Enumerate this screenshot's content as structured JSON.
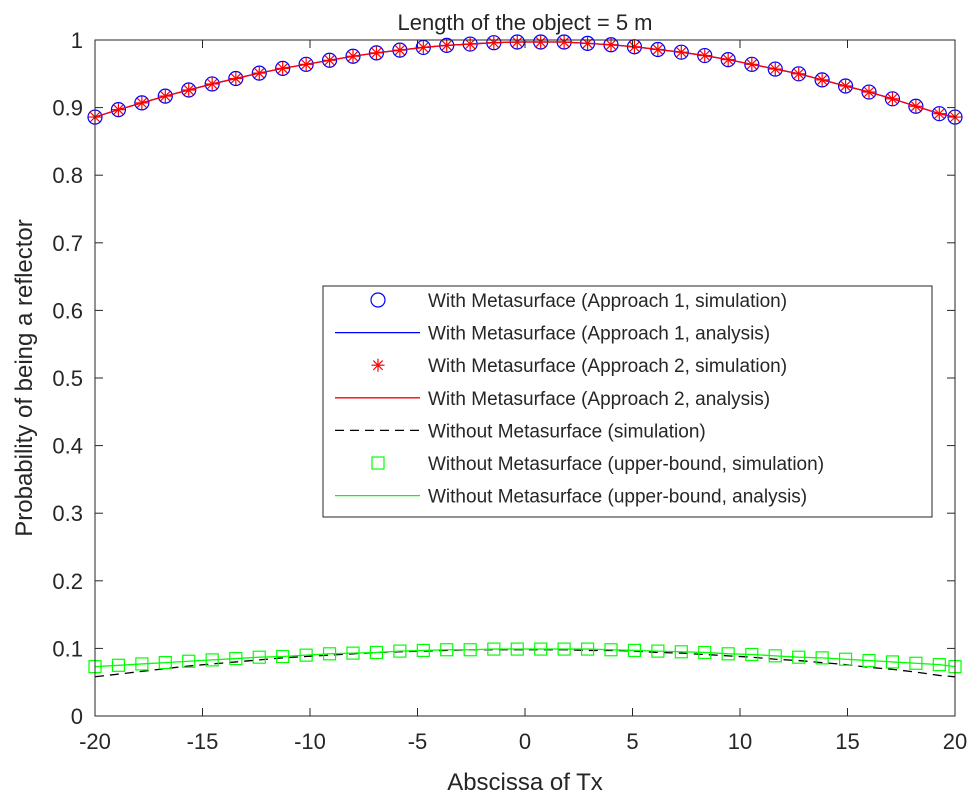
{
  "chart_data": {
    "type": "line",
    "title": "Length of the object = 5 m",
    "xlabel": "Abscissa of Tx",
    "ylabel": "Probability of being a reflector",
    "xlim": [
      -20,
      20
    ],
    "ylim": [
      0,
      1
    ],
    "xticks": [
      -20,
      -15,
      -10,
      -5,
      0,
      5,
      10,
      15,
      20
    ],
    "yticks": [
      0,
      0.1,
      0.2,
      0.3,
      0.4,
      0.5,
      0.6,
      0.7,
      0.8,
      0.9,
      1
    ],
    "xtick_labels": [
      "-20",
      "-15",
      "-10",
      "-5",
      "0",
      "5",
      "10",
      "15",
      "20"
    ],
    "ytick_labels": [
      "0",
      "0.1",
      "0.2",
      "0.3",
      "0.4",
      "0.5",
      "0.6",
      "0.7",
      "0.8",
      "0.9",
      "1"
    ],
    "grid": false,
    "legend_position": "center-right",
    "x": [
      -20,
      -18.91,
      -17.82,
      -16.73,
      -15.64,
      -14.55,
      -13.45,
      -12.36,
      -11.27,
      -10.18,
      -9.09,
      -8.0,
      -6.91,
      -5.82,
      -4.73,
      -3.64,
      -2.55,
      -1.45,
      -0.36,
      0.73,
      1.82,
      2.91,
      4.0,
      5.09,
      6.18,
      7.27,
      8.36,
      9.45,
      10.55,
      11.64,
      12.73,
      13.82,
      14.91,
      16.0,
      17.09,
      18.18,
      19.27,
      20
    ],
    "series": [
      {
        "name": "With Metasurface (Approach 1, simulation)",
        "style": "circle-markers",
        "color": "#0000ff",
        "values": [
          0.886,
          0.897,
          0.907,
          0.917,
          0.926,
          0.935,
          0.943,
          0.951,
          0.958,
          0.964,
          0.97,
          0.976,
          0.981,
          0.985,
          0.989,
          0.992,
          0.994,
          0.996,
          0.997,
          0.997,
          0.997,
          0.995,
          0.993,
          0.99,
          0.986,
          0.982,
          0.977,
          0.971,
          0.964,
          0.957,
          0.95,
          0.941,
          0.932,
          0.923,
          0.913,
          0.902,
          0.891,
          0.886
        ]
      },
      {
        "name": "With Metasurface (Approach 1, analysis)",
        "style": "solid-line",
        "color": "#0000ff",
        "values": [
          0.886,
          0.897,
          0.907,
          0.917,
          0.926,
          0.935,
          0.943,
          0.951,
          0.958,
          0.964,
          0.97,
          0.976,
          0.981,
          0.985,
          0.989,
          0.992,
          0.994,
          0.996,
          0.997,
          0.997,
          0.997,
          0.995,
          0.993,
          0.99,
          0.986,
          0.982,
          0.977,
          0.971,
          0.964,
          0.957,
          0.95,
          0.941,
          0.932,
          0.923,
          0.913,
          0.902,
          0.891,
          0.886
        ]
      },
      {
        "name": "With Metasurface (Approach 2, simulation)",
        "style": "star-markers",
        "color": "#ff0000",
        "values": [
          0.886,
          0.897,
          0.907,
          0.917,
          0.926,
          0.935,
          0.943,
          0.951,
          0.958,
          0.964,
          0.97,
          0.976,
          0.981,
          0.985,
          0.989,
          0.992,
          0.994,
          0.996,
          0.997,
          0.997,
          0.997,
          0.995,
          0.993,
          0.99,
          0.986,
          0.982,
          0.977,
          0.971,
          0.964,
          0.957,
          0.95,
          0.941,
          0.932,
          0.923,
          0.913,
          0.902,
          0.891,
          0.886
        ]
      },
      {
        "name": "With Metasurface (Approach 2, analysis)",
        "style": "solid-line",
        "color": "#ff0000",
        "values": [
          0.886,
          0.897,
          0.907,
          0.917,
          0.926,
          0.935,
          0.943,
          0.951,
          0.958,
          0.964,
          0.97,
          0.976,
          0.981,
          0.985,
          0.989,
          0.992,
          0.994,
          0.996,
          0.997,
          0.997,
          0.997,
          0.995,
          0.993,
          0.99,
          0.986,
          0.982,
          0.977,
          0.971,
          0.964,
          0.957,
          0.95,
          0.941,
          0.932,
          0.923,
          0.913,
          0.902,
          0.891,
          0.886
        ]
      },
      {
        "name": "Without Metasurface (simulation)",
        "style": "dashed-line",
        "color": "#000000",
        "values": [
          0.058,
          0.062,
          0.066,
          0.07,
          0.074,
          0.077,
          0.08,
          0.083,
          0.086,
          0.088,
          0.09,
          0.092,
          0.094,
          0.095,
          0.096,
          0.097,
          0.098,
          0.098,
          0.098,
          0.098,
          0.098,
          0.097,
          0.097,
          0.096,
          0.094,
          0.093,
          0.091,
          0.089,
          0.087,
          0.084,
          0.082,
          0.079,
          0.076,
          0.072,
          0.069,
          0.065,
          0.06,
          0.058
        ]
      },
      {
        "name": "Without Metasurface (upper-bound, simulation)",
        "style": "square-markers",
        "color": "#00ff00",
        "values": [
          0.073,
          0.075,
          0.077,
          0.079,
          0.081,
          0.083,
          0.085,
          0.087,
          0.088,
          0.09,
          0.092,
          0.093,
          0.094,
          0.096,
          0.097,
          0.098,
          0.098,
          0.099,
          0.099,
          0.099,
          0.099,
          0.099,
          0.098,
          0.097,
          0.096,
          0.095,
          0.094,
          0.092,
          0.091,
          0.089,
          0.087,
          0.086,
          0.084,
          0.082,
          0.08,
          0.078,
          0.076,
          0.073
        ]
      },
      {
        "name": "Without Metasurface (upper-bound, analysis)",
        "style": "solid-line",
        "color": "#00ff00",
        "values": [
          0.073,
          0.075,
          0.077,
          0.079,
          0.081,
          0.083,
          0.085,
          0.087,
          0.088,
          0.09,
          0.092,
          0.093,
          0.094,
          0.096,
          0.097,
          0.098,
          0.098,
          0.099,
          0.099,
          0.099,
          0.099,
          0.099,
          0.098,
          0.097,
          0.096,
          0.095,
          0.094,
          0.092,
          0.091,
          0.089,
          0.087,
          0.086,
          0.084,
          0.082,
          0.08,
          0.078,
          0.076,
          0.073
        ]
      }
    ]
  }
}
